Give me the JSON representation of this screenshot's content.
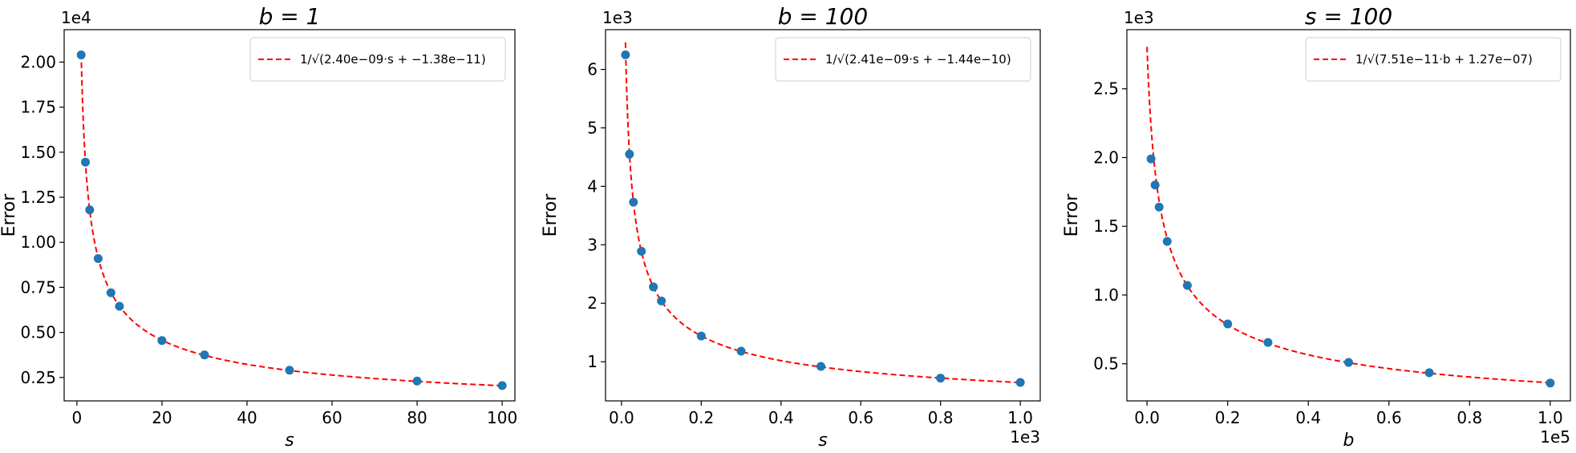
{
  "chart_data": [
    {
      "type": "scatter",
      "title": "b = 1",
      "xlabel": "s",
      "ylabel": "Error",
      "y_offset_label": "1e4",
      "x_offset_label": "",
      "xlim": [
        -3,
        103
      ],
      "ylim": [
        1200,
        21800
      ],
      "xticks": [
        0,
        20,
        40,
        60,
        80,
        100
      ],
      "xtick_labels": [
        "0",
        "20",
        "40",
        "60",
        "80",
        "100"
      ],
      "yticks": [
        2500,
        5000,
        7500,
        10000,
        12500,
        15000,
        17500,
        20000
      ],
      "ytick_labels": [
        "0.25",
        "0.50",
        "0.75",
        "1.00",
        "1.25",
        "1.50",
        "1.75",
        "2.00"
      ],
      "series": [
        {
          "x": [
            1,
            2,
            3,
            5,
            8,
            10,
            20,
            30,
            50,
            80,
            100
          ],
          "y": [
            20400,
            14450,
            11800,
            9100,
            7200,
            6450,
            4550,
            3750,
            2900,
            2300,
            2050
          ]
        }
      ],
      "fit": {
        "param": "s",
        "a": 2.4e-09,
        "b": -1.38e-11,
        "x_start": 1,
        "x_end": 100,
        "color": "#ff0000",
        "label": "1/√(2.40e−09·s + −1.38e−11)"
      },
      "marker_color": "#1f77b4",
      "legend_position": "upper right",
      "grid": false
    },
    {
      "type": "scatter",
      "title": "b = 100",
      "xlabel": "s",
      "ylabel": "Error",
      "y_offset_label": "1e3",
      "x_offset_label": "1e3",
      "xlim": [
        -40,
        1050
      ],
      "ylim": [
        330,
        6680
      ],
      "xticks": [
        0,
        200,
        400,
        600,
        800,
        1000
      ],
      "xtick_labels": [
        "0.0",
        "0.2",
        "0.4",
        "0.6",
        "0.8",
        "1.0"
      ],
      "yticks": [
        1000,
        2000,
        3000,
        4000,
        5000,
        6000
      ],
      "ytick_labels": [
        "1",
        "2",
        "3",
        "4",
        "5",
        "6"
      ],
      "series": [
        {
          "x": [
            10,
            20,
            30,
            50,
            80,
            100,
            200,
            300,
            500,
            800,
            1000
          ],
          "y": [
            6250,
            4550,
            3730,
            2890,
            2280,
            2040,
            1440,
            1180,
            920,
            720,
            645
          ]
        }
      ],
      "fit": {
        "param": "s",
        "a": 2.41e-09,
        "b": -1.44e-10,
        "x_start": 10,
        "x_end": 1000,
        "color": "#ff0000",
        "label": "1/√(2.41e−09·s + −1.44e−10)"
      },
      "marker_color": "#1f77b4",
      "legend_position": "upper right",
      "grid": false
    },
    {
      "type": "scatter",
      "title": "s = 100",
      "xlabel": "b",
      "ylabel": "Error",
      "y_offset_label": "1e3",
      "x_offset_label": "1e5",
      "xlim": [
        -5000,
        105000
      ],
      "ylim": [
        230,
        2930
      ],
      "xticks": [
        0,
        20000,
        40000,
        60000,
        80000,
        100000
      ],
      "xtick_labels": [
        "0.0",
        "0.2",
        "0.4",
        "0.6",
        "0.8",
        "1.0"
      ],
      "yticks": [
        500,
        1000,
        1500,
        2000,
        2500
      ],
      "ytick_labels": [
        "0.5",
        "1.0",
        "1.5",
        "2.0",
        "2.5"
      ],
      "series": [
        {
          "x": [
            1000,
            2000,
            3000,
            5000,
            10000,
            20000,
            30000,
            50000,
            70000,
            100000
          ],
          "y": [
            1990,
            1800,
            1640,
            1390,
            1070,
            790,
            655,
            510,
            435,
            360
          ]
        }
      ],
      "fit": {
        "param": "b",
        "a": 7.51e-11,
        "b": 1.27e-07,
        "x_start": 1,
        "x_end": 100000,
        "color": "#ff0000",
        "label": "1/√(7.51e−11·b + 1.27e−07)"
      },
      "marker_color": "#1f77b4",
      "legend_position": "upper right",
      "grid": false
    }
  ]
}
